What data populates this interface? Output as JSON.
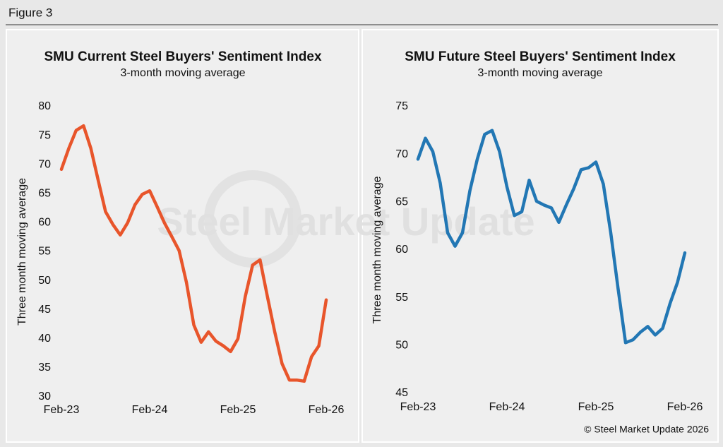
{
  "figure_label": "Figure 3",
  "source": "© Steel Market Update 2026",
  "watermark": "Steel Market Update",
  "chart_data": [
    {
      "type": "line",
      "title": "SMU Current Steel Buyers' Sentiment Index",
      "subtitle": "3-month moving average",
      "y_label": "Three month moving average",
      "categories": [
        "Feb-23",
        null,
        null,
        null,
        null,
        null,
        null,
        null,
        null,
        null,
        null,
        null,
        "Feb-24",
        null,
        null,
        null,
        null,
        null,
        null,
        null,
        null,
        null,
        null,
        null,
        "Feb-25",
        null,
        null,
        null,
        null,
        null,
        null,
        null,
        null,
        null,
        null,
        null,
        "Feb-26"
      ],
      "series": [
        {
          "name": "SMU Current Steel Buyers' Sentiment Index",
          "color": "#e8552b",
          "values": [
            69.2,
            72.8,
            75.9,
            76.7,
            72.8,
            67.3,
            61.9,
            59.7,
            57.9,
            60,
            63.1,
            64.9,
            65.5,
            62.8,
            60,
            57.6,
            55.2,
            49.7,
            42.4,
            39.4,
            41.2,
            39.6,
            38.8,
            37.8,
            40,
            47.3,
            52.7,
            53.6,
            47.3,
            41.2,
            35.7,
            32.9,
            32.9,
            32.7,
            36.9,
            38.8,
            46.7
          ]
        }
      ],
      "ylim": [
        30,
        80
      ],
      "yticks": [
        30,
        35,
        40,
        45,
        50,
        55,
        60,
        65,
        70,
        75,
        80
      ],
      "grid": false
    },
    {
      "type": "line",
      "title": "SMU Future Steel Buyers' Sentiment Index",
      "subtitle": "3-month moving average",
      "y_label": "Three month moving average",
      "categories": [
        "Feb-23",
        null,
        null,
        null,
        null,
        null,
        null,
        null,
        null,
        null,
        null,
        null,
        "Feb-24",
        null,
        null,
        null,
        null,
        null,
        null,
        null,
        null,
        null,
        null,
        null,
        "Feb-25",
        null,
        null,
        null,
        null,
        null,
        null,
        null,
        null,
        null,
        null,
        null,
        "Feb-26"
      ],
      "series": [
        {
          "name": "SMU Future Steel Buyers' Sentiment Index",
          "color": "#2277b4",
          "values": [
            69.5,
            71.7,
            70.3,
            67,
            61.8,
            60.4,
            61.8,
            66.2,
            69.5,
            72.1,
            72.5,
            70.3,
            66.6,
            63.6,
            64,
            67.3,
            65.1,
            64.7,
            64.4,
            62.9,
            64.7,
            66.4,
            68.4,
            68.6,
            69.2,
            66.9,
            61.8,
            55.9,
            50.3,
            50.6,
            51.4,
            52,
            51.1,
            51.8,
            54.4,
            56.6,
            59.7
          ]
        }
      ],
      "ylim": [
        45,
        75
      ],
      "yticks": [
        45,
        50,
        55,
        60,
        65,
        70,
        75
      ],
      "grid": false
    }
  ]
}
